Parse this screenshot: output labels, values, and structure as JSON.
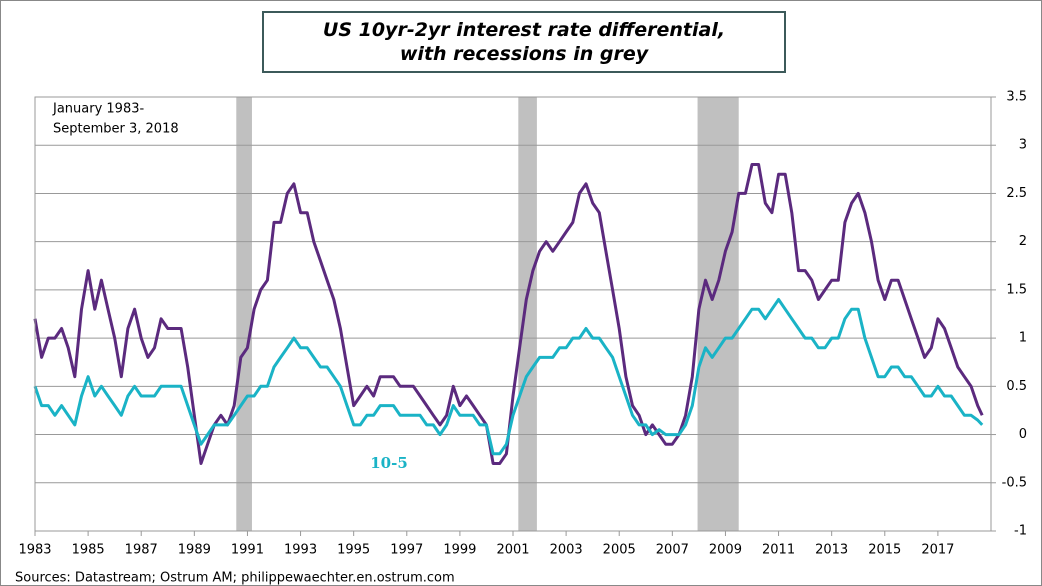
{
  "chart_data": {
    "type": "line",
    "title": "US 10yr-2yr interest rate differential, with recessions in grey",
    "period_note": [
      "January 1983-",
      "September 3, 2018"
    ],
    "series_label": "10-5",
    "source": "Sources: Datastream;  Ostrum  AM; philippewaechter.en.ostrum.com",
    "xlim": [
      1983,
      2019
    ],
    "xticks": [
      1983,
      1985,
      1987,
      1989,
      1991,
      1993,
      1995,
      1997,
      1999,
      2001,
      2003,
      2005,
      2007,
      2009,
      2011,
      2013,
      2015,
      2017
    ],
    "ylim": [
      -1,
      3.5
    ],
    "yticks": [
      -1,
      -0.5,
      0,
      0.5,
      1,
      1.5,
      2,
      2.5,
      3,
      3.5
    ],
    "grid": true,
    "recession_color": "#c0c0c0",
    "recessions": [
      [
        1990.58,
        1991.17
      ],
      [
        2001.2,
        2001.9
      ],
      [
        2007.95,
        2009.5
      ]
    ],
    "x": [
      1983.0,
      1983.25,
      1983.5,
      1983.75,
      1984.0,
      1984.25,
      1984.5,
      1984.75,
      1985.0,
      1985.25,
      1985.5,
      1985.75,
      1986.0,
      1986.25,
      1986.5,
      1986.75,
      1987.0,
      1987.25,
      1987.5,
      1987.75,
      1988.0,
      1988.25,
      1988.5,
      1988.75,
      1989.0,
      1989.25,
      1989.5,
      1989.75,
      1990.0,
      1990.25,
      1990.5,
      1990.75,
      1991.0,
      1991.25,
      1991.5,
      1991.75,
      1992.0,
      1992.25,
      1992.5,
      1992.75,
      1993.0,
      1993.25,
      1993.5,
      1993.75,
      1994.0,
      1994.25,
      1994.5,
      1994.75,
      1995.0,
      1995.25,
      1995.5,
      1995.75,
      1996.0,
      1996.25,
      1996.5,
      1996.75,
      1997.0,
      1997.25,
      1997.5,
      1997.75,
      1998.0,
      1998.25,
      1998.5,
      1998.75,
      1999.0,
      1999.25,
      1999.5,
      1999.75,
      2000.0,
      2000.25,
      2000.5,
      2000.75,
      2001.0,
      2001.25,
      2001.5,
      2001.75,
      2002.0,
      2002.25,
      2002.5,
      2002.75,
      2003.0,
      2003.25,
      2003.5,
      2003.75,
      2004.0,
      2004.25,
      2004.5,
      2004.75,
      2005.0,
      2005.25,
      2005.5,
      2005.75,
      2006.0,
      2006.25,
      2006.5,
      2006.75,
      2007.0,
      2007.25,
      2007.5,
      2007.75,
      2008.0,
      2008.25,
      2008.5,
      2008.75,
      2009.0,
      2009.25,
      2009.5,
      2009.75,
      2010.0,
      2010.25,
      2010.5,
      2010.75,
      2011.0,
      2011.25,
      2011.5,
      2011.75,
      2012.0,
      2012.25,
      2012.5,
      2012.75,
      2013.0,
      2013.25,
      2013.5,
      2013.75,
      2014.0,
      2014.25,
      2014.5,
      2014.75,
      2015.0,
      2015.25,
      2015.5,
      2015.75,
      2016.0,
      2016.25,
      2016.5,
      2016.75,
      2017.0,
      2017.25,
      2017.5,
      2017.75,
      2018.0,
      2018.25,
      2018.5,
      2018.67
    ],
    "series": [
      {
        "color": "#5b2a7e",
        "values": [
          1.2,
          0.8,
          1.0,
          1.0,
          1.1,
          0.9,
          0.6,
          1.3,
          1.7,
          1.3,
          1.6,
          1.3,
          1.0,
          0.6,
          1.1,
          1.3,
          1.0,
          0.8,
          0.9,
          1.2,
          1.1,
          1.1,
          1.1,
          0.7,
          0.2,
          -0.3,
          -0.1,
          0.1,
          0.2,
          0.1,
          0.3,
          0.8,
          0.9,
          1.3,
          1.5,
          1.6,
          2.2,
          2.2,
          2.5,
          2.6,
          2.3,
          2.3,
          2.0,
          1.8,
          1.6,
          1.4,
          1.1,
          0.7,
          0.3,
          0.4,
          0.5,
          0.4,
          0.6,
          0.6,
          0.6,
          0.5,
          0.5,
          0.5,
          0.4,
          0.3,
          0.2,
          0.1,
          0.2,
          0.5,
          0.3,
          0.4,
          0.3,
          0.2,
          0.1,
          -0.3,
          -0.3,
          -0.2,
          0.4,
          0.9,
          1.4,
          1.7,
          1.9,
          2.0,
          1.9,
          2.0,
          2.1,
          2.2,
          2.5,
          2.6,
          2.4,
          2.3,
          1.9,
          1.5,
          1.1,
          0.6,
          0.3,
          0.2,
          0.0,
          0.1,
          0.0,
          -0.1,
          -0.1,
          0.0,
          0.2,
          0.6,
          1.3,
          1.6,
          1.4,
          1.6,
          1.9,
          2.1,
          2.5,
          2.5,
          2.8,
          2.8,
          2.4,
          2.3,
          2.7,
          2.7,
          2.3,
          1.7,
          1.7,
          1.6,
          1.4,
          1.5,
          1.6,
          1.6,
          2.2,
          2.4,
          2.5,
          2.3,
          2.0,
          1.6,
          1.4,
          1.6,
          1.6,
          1.4,
          1.2,
          1.0,
          0.8,
          0.9,
          1.2,
          1.1,
          0.9,
          0.7,
          0.6,
          0.5,
          0.3,
          0.2
        ]
      },
      {
        "color": "#1ab3c6",
        "values": [
          0.5,
          0.3,
          0.3,
          0.2,
          0.3,
          0.2,
          0.1,
          0.4,
          0.6,
          0.4,
          0.5,
          0.4,
          0.3,
          0.2,
          0.4,
          0.5,
          0.4,
          0.4,
          0.4,
          0.5,
          0.5,
          0.5,
          0.5,
          0.3,
          0.1,
          -0.1,
          0.0,
          0.1,
          0.1,
          0.1,
          0.2,
          0.3,
          0.4,
          0.4,
          0.5,
          0.5,
          0.7,
          0.8,
          0.9,
          1.0,
          0.9,
          0.9,
          0.8,
          0.7,
          0.7,
          0.6,
          0.5,
          0.3,
          0.1,
          0.1,
          0.2,
          0.2,
          0.3,
          0.3,
          0.3,
          0.2,
          0.2,
          0.2,
          0.2,
          0.1,
          0.1,
          0.0,
          0.1,
          0.3,
          0.2,
          0.2,
          0.2,
          0.1,
          0.1,
          -0.2,
          -0.2,
          -0.1,
          0.2,
          0.4,
          0.6,
          0.7,
          0.8,
          0.8,
          0.8,
          0.9,
          0.9,
          1.0,
          1.0,
          1.1,
          1.0,
          1.0,
          0.9,
          0.8,
          0.6,
          0.4,
          0.2,
          0.1,
          0.1,
          0.0,
          0.05,
          0.0,
          0.0,
          0.0,
          0.1,
          0.3,
          0.7,
          0.9,
          0.8,
          0.9,
          1.0,
          1.0,
          1.1,
          1.2,
          1.3,
          1.3,
          1.2,
          1.3,
          1.4,
          1.3,
          1.2,
          1.1,
          1.0,
          1.0,
          0.9,
          0.9,
          1.0,
          1.0,
          1.2,
          1.3,
          1.3,
          1.0,
          0.8,
          0.6,
          0.6,
          0.7,
          0.7,
          0.6,
          0.6,
          0.5,
          0.4,
          0.4,
          0.5,
          0.4,
          0.4,
          0.3,
          0.2,
          0.2,
          0.15,
          0.1
        ]
      }
    ]
  }
}
